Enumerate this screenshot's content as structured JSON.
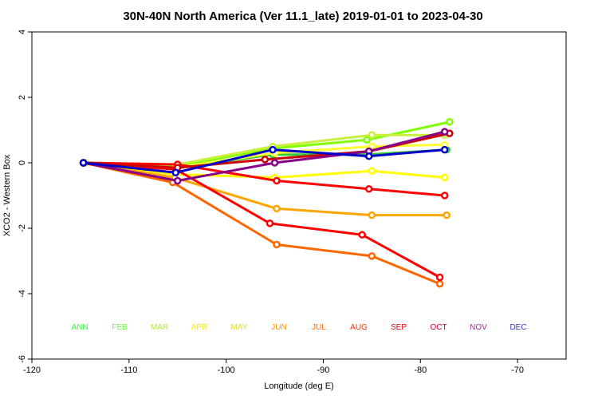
{
  "chart_data": {
    "type": "line",
    "title": "30N-40N North America (Ver 11.1_late)   2019-01-01 to 2023-04-30",
    "xlabel": "Longitude (deg E)",
    "ylabel": "XCO2 - Western Box",
    "xlim": [
      -120,
      -65
    ],
    "ylim": [
      -6,
      4
    ],
    "xticks": [
      -120,
      -110,
      -100,
      -90,
      -80,
      -70
    ],
    "yticks": [
      -6,
      -4,
      -2,
      0,
      2,
      4
    ],
    "grid": false,
    "series": [
      {
        "name": "ANN",
        "color": "#33cc33",
        "x": [
          -114.7,
          -105.2,
          -95.2,
          -85.5,
          -77.3
        ],
        "y": [
          0,
          -0.15,
          0.25,
          0.25,
          0.4
        ]
      },
      {
        "name": "FEB",
        "color": "#7fff00",
        "x": [
          -114.5,
          -105.0,
          -95.0,
          -85.5,
          -77.0
        ],
        "y": [
          0,
          -0.1,
          0.45,
          0.7,
          1.25
        ]
      },
      {
        "name": "MAR",
        "color": "#c8f03c",
        "x": [
          -114.5,
          -105.0,
          -95.2,
          -85.0,
          -77.5
        ],
        "y": [
          0,
          -0.05,
          0.5,
          0.85,
          0.85
        ]
      },
      {
        "name": "APR",
        "color": "#ffff33",
        "x": [
          -114.7,
          -105.3,
          -95.0,
          -85.0,
          -77.5
        ],
        "y": [
          0,
          -0.15,
          0.3,
          0.5,
          0.55
        ]
      },
      {
        "name": "MAY",
        "color": "#ffff00",
        "x": [
          -114.7,
          -105.5,
          -95.0,
          -85.0,
          -77.5
        ],
        "y": [
          0,
          -0.35,
          -0.45,
          -0.25,
          -0.45
        ]
      },
      {
        "name": "JUN",
        "color": "#ffa500",
        "x": [
          -114.7,
          -105.3,
          -94.8,
          -85.0,
          -77.3
        ],
        "y": [
          0,
          -0.45,
          -1.4,
          -1.6,
          -1.6
        ]
      },
      {
        "name": "JUL",
        "color": "#ff6600",
        "x": [
          -114.7,
          -105.5,
          -94.8,
          -85.0,
          -78.0
        ],
        "y": [
          0,
          -0.6,
          -2.5,
          -2.85,
          -3.7
        ]
      },
      {
        "name": "AUG",
        "color": "#ff0000",
        "x": [
          -114.7,
          -105.2,
          -95.5,
          -86.0,
          -78.0
        ],
        "y": [
          0,
          -0.2,
          -1.85,
          -2.2,
          -3.5
        ]
      },
      {
        "name": "SEP",
        "color": "#ff0000",
        "x": [
          -114.7,
          -105.0,
          -94.8,
          -85.3,
          -77.5
        ],
        "y": [
          0,
          -0.05,
          -0.55,
          -0.8,
          -1.0
        ]
      },
      {
        "name": "OCT",
        "color": "#cc0000",
        "x": [
          -114.7,
          -105.0,
          -96.0,
          -85.3,
          -77.0
        ],
        "y": [
          0,
          -0.15,
          0.1,
          0.35,
          0.9
        ]
      },
      {
        "name": "NOV",
        "color": "#880088",
        "x": [
          -114.7,
          -105.0,
          -95.0,
          -85.3,
          -77.5
        ],
        "y": [
          0,
          -0.55,
          0.0,
          0.35,
          0.95
        ]
      },
      {
        "name": "DEC",
        "color": "#0000cc",
        "x": [
          -114.7,
          -105.2,
          -95.2,
          -85.3,
          -77.5
        ],
        "y": [
          0,
          -0.3,
          0.4,
          0.2,
          0.4
        ]
      }
    ],
    "legend": {
      "placement": "bottom-inside",
      "entries": [
        {
          "label": "ANN",
          "color": "#33ff33"
        },
        {
          "label": "FEB",
          "color": "#66ff33"
        },
        {
          "label": "MAR",
          "color": "#aaee33"
        },
        {
          "label": "APR",
          "color": "#eeee00"
        },
        {
          "label": "MAY",
          "color": "#dddd33"
        },
        {
          "label": "JUN",
          "color": "#ff9900"
        },
        {
          "label": "JUL",
          "color": "#ff6600"
        },
        {
          "label": "AUG",
          "color": "#ff3300"
        },
        {
          "label": "SEP",
          "color": "#ee0000"
        },
        {
          "label": "OCT",
          "color": "#cc0033"
        },
        {
          "label": "NOV",
          "color": "#993399"
        },
        {
          "label": "DEC",
          "color": "#3333cc"
        }
      ]
    }
  }
}
